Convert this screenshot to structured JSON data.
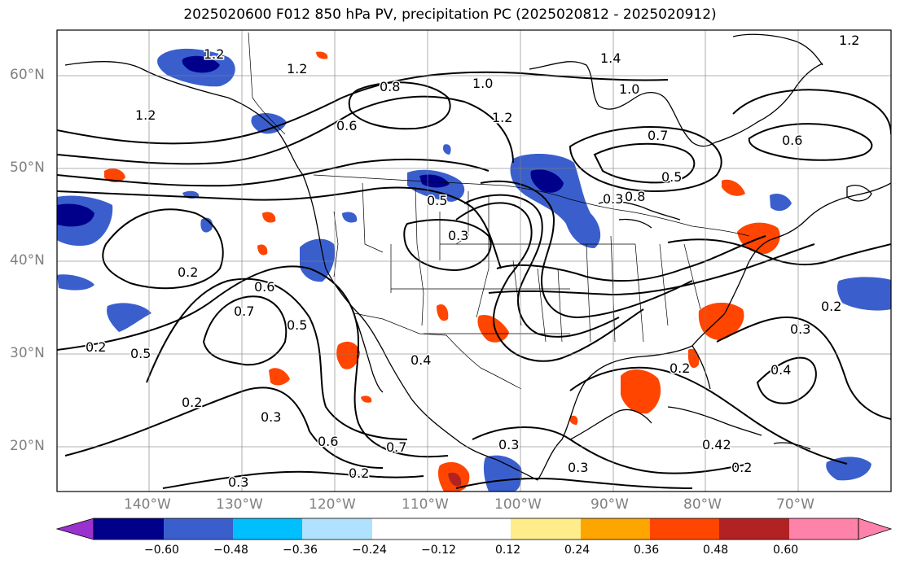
{
  "title": "2025020600 F012 850 hPa PV, precipitation PC (2025020812 - 2025020912)",
  "lat_labels": [
    "60°N",
    "50°N",
    "40°N",
    "30°N",
    "20°N"
  ],
  "lon_labels": [
    "140°W",
    "130°W",
    "120°W",
    "110°W",
    "100°W",
    "90°W",
    "80°W",
    "70°W"
  ],
  "colorbar": {
    "ticks": [
      "−0.60",
      "−0.48",
      "−0.36",
      "−0.24",
      "−0.12",
      "0.12",
      "0.24",
      "0.36",
      "0.48",
      "0.60"
    ],
    "colors": [
      "#9a32cd",
      "#00008b",
      "#3a5fcd",
      "#00bfff",
      "#b0e2ff",
      "#ffffff",
      "#ffec8b",
      "#ffa500",
      "#ff4500",
      "#b22222",
      "#ff82ab"
    ]
  },
  "contour_labels": [
    {
      "text": "1.2"
    },
    {
      "text": "1.2"
    },
    {
      "text": "1.2"
    },
    {
      "text": "0.8"
    },
    {
      "text": "1.0"
    },
    {
      "text": "1.4"
    },
    {
      "text": "1.0"
    },
    {
      "text": "1.2"
    },
    {
      "text": "1.2"
    },
    {
      "text": "0.6"
    },
    {
      "text": "0.7"
    },
    {
      "text": "0.6"
    },
    {
      "text": "0.5"
    },
    {
      "text": "0.5"
    },
    {
      "text": "0.8"
    },
    {
      "text": "0.5"
    },
    {
      "text": "0.3"
    },
    {
      "text": "0.2"
    },
    {
      "text": "0.6"
    },
    {
      "text": "0.7"
    },
    {
      "text": "0.5"
    },
    {
      "text": "0.2"
    },
    {
      "text": "0.4"
    },
    {
      "text": "0.2"
    },
    {
      "text": "0.3"
    },
    {
      "text": "0.6"
    },
    {
      "text": "0.7"
    },
    {
      "text": "0.2"
    },
    {
      "text": "0.3"
    },
    {
      "text": "0.3"
    },
    {
      "text": "0.2"
    },
    {
      "text": "0.3"
    },
    {
      "text": "0.4"
    },
    {
      "text": "0.2"
    },
    {
      "text": "0.3"
    },
    {
      "text": "0.42"
    },
    {
      "text": "0.2"
    },
    {
      "text": "0.3"
    }
  ]
}
